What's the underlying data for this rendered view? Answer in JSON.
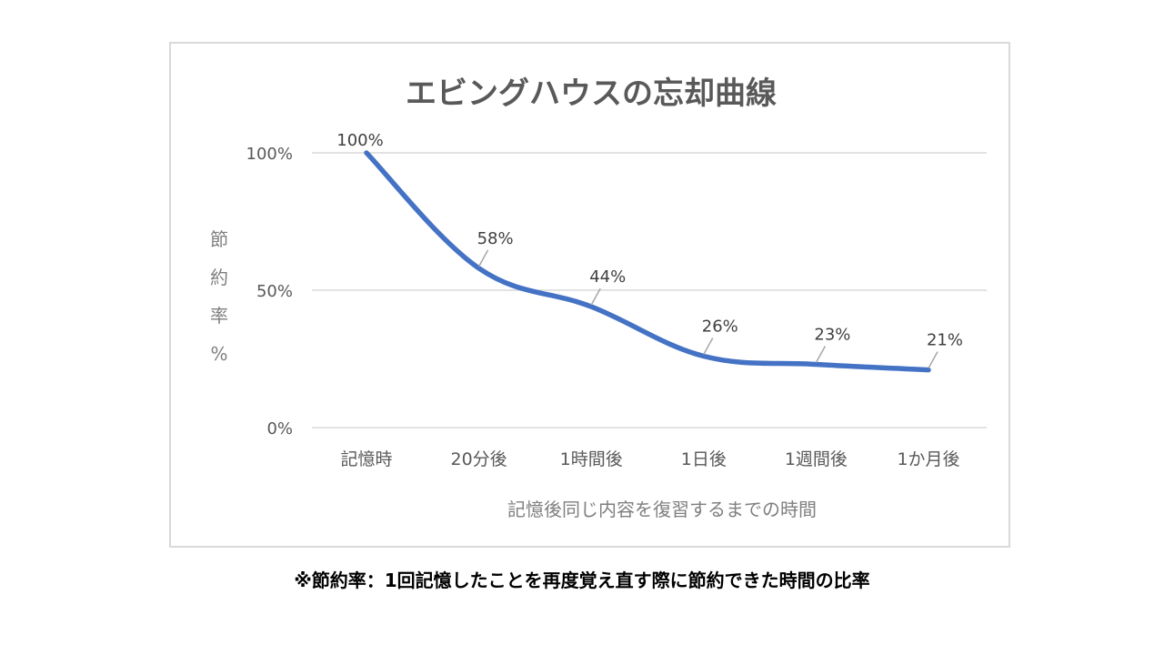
{
  "chart_data": {
    "type": "line",
    "title": "エビングハウスの忘却曲線",
    "xlabel": "記憶後同じ内容を復習するまでの時間",
    "ylabel": "節約率%",
    "ylabel_chars": [
      "節",
      "約",
      "率",
      "%"
    ],
    "categories": [
      "記憶時",
      "20分後",
      "1時間後",
      "1日後",
      "1週間後",
      "1か月後"
    ],
    "values": [
      100,
      58,
      44,
      26,
      23,
      21
    ],
    "data_labels": [
      "100%",
      "58%",
      "44%",
      "26%",
      "23%",
      "21%"
    ],
    "yticks": [
      {
        "value": 0,
        "label": "0%"
      },
      {
        "value": 50,
        "label": "50%"
      },
      {
        "value": 100,
        "label": "100%"
      }
    ],
    "ylim": [
      0,
      100
    ],
    "grid": true,
    "smooth": true,
    "line_color": "#4472c4",
    "legend": "none"
  },
  "footnote": "※節約率：1回記憶したことを再度覚え直す際に節約できた時間の比率"
}
